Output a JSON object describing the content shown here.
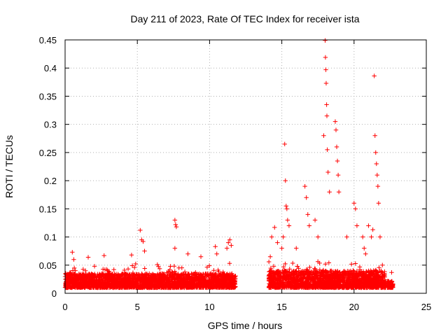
{
  "chart_data": {
    "type": "scatter",
    "title": "Day 211 of 2023, Rate Of TEC Index for receiver ista",
    "xlabel": "GPS time / hours",
    "ylabel": "ROTI / TECUs",
    "xlim": [
      0,
      25
    ],
    "ylim": [
      0,
      0.45
    ],
    "xticks": [
      "0",
      "5",
      "10",
      "15",
      "20",
      "25"
    ],
    "yticks": [
      "0",
      "0.05",
      "0.1",
      "0.15",
      "0.2",
      "0.25",
      "0.3",
      "0.35",
      "0.4",
      "0.45"
    ],
    "grid": true,
    "marker": "+",
    "series": [
      {
        "name": "ROTI",
        "color": "#ff0000",
        "dense_segments": [
          {
            "x_start": 0.0,
            "x_end": 11.8,
            "y_base_max": 0.035
          },
          {
            "x_start": 14.1,
            "x_end": 22.2,
            "y_base_max": 0.04
          },
          {
            "x_start": 22.3,
            "x_end": 22.7,
            "y_base_max": 0.022
          }
        ],
        "x": [
          0.5,
          0.6,
          1.6,
          2.7,
          4.6,
          5.2,
          5.3,
          5.4,
          5.5,
          7.6,
          7.65,
          7.7,
          7.6,
          8.5,
          9.4,
          10.4,
          10.5,
          11.2,
          11.3,
          11.4,
          11.5,
          14.2,
          14.3,
          14.5,
          14.7,
          15.0,
          15.1,
          15.2,
          15.25,
          15.3,
          15.35,
          15.4,
          15.5,
          16.0,
          16.6,
          16.7,
          16.8,
          16.9,
          17.3,
          17.5,
          17.9,
          18.0,
          18.02,
          18.05,
          18.07,
          18.1,
          18.12,
          18.15,
          18.2,
          18.3,
          18.7,
          18.75,
          18.8,
          18.85,
          18.9,
          18.95,
          19.5,
          20.0,
          20.1,
          20.2,
          20.6,
          20.7,
          20.8,
          21.0,
          21.2,
          21.3,
          21.4,
          21.45,
          21.5,
          21.55,
          21.6,
          21.65,
          21.7,
          21.8,
          22.6
        ],
        "y": [
          0.073,
          0.06,
          0.064,
          0.067,
          0.068,
          0.112,
          0.095,
          0.092,
          0.075,
          0.13,
          0.122,
          0.118,
          0.08,
          0.07,
          0.065,
          0.083,
          0.07,
          0.08,
          0.09,
          0.095,
          0.085,
          0.065,
          0.1,
          0.117,
          0.09,
          0.08,
          0.1,
          0.265,
          0.2,
          0.155,
          0.15,
          0.13,
          0.12,
          0.08,
          0.19,
          0.17,
          0.14,
          0.12,
          0.13,
          0.1,
          0.28,
          0.449,
          0.419,
          0.397,
          0.373,
          0.335,
          0.315,
          0.255,
          0.215,
          0.18,
          0.305,
          0.29,
          0.26,
          0.235,
          0.21,
          0.18,
          0.1,
          0.16,
          0.15,
          0.12,
          0.1,
          0.08,
          0.07,
          0.12,
          0.1,
          0.113,
          0.386,
          0.28,
          0.25,
          0.23,
          0.21,
          0.19,
          0.16,
          0.1,
          0.037
        ]
      }
    ]
  }
}
